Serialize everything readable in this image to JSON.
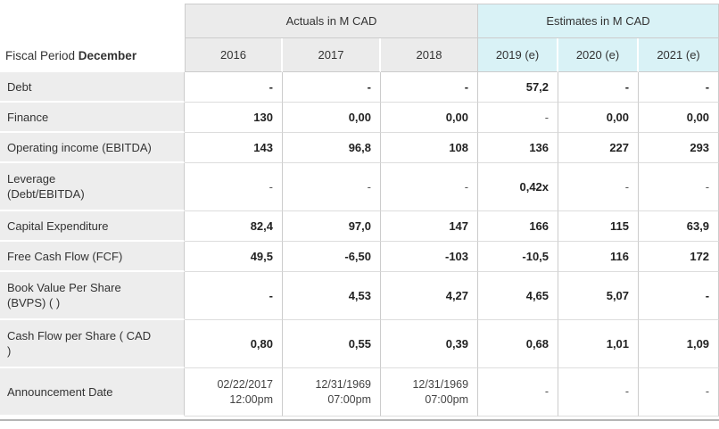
{
  "table": {
    "fiscal_period_label": "Fiscal Period ",
    "fiscal_period_value": "December",
    "group_headers": [
      {
        "label": "Actuals in M CAD"
      },
      {
        "label": "Estimates in M CAD"
      }
    ],
    "year_headers": [
      {
        "label": "2016",
        "type": "actuals"
      },
      {
        "label": "2017",
        "type": "actuals"
      },
      {
        "label": "2018",
        "type": "actuals"
      },
      {
        "label": "2019 (e)",
        "type": "estimates"
      },
      {
        "label": "2020 (e)",
        "type": "estimates"
      },
      {
        "label": "2021 (e)",
        "type": "estimates"
      }
    ],
    "rows": [
      {
        "id": "debt",
        "label": "Debt",
        "values": [
          "-",
          "-",
          "-",
          "57,2",
          "-",
          "-"
        ],
        "bold_dashes": true
      },
      {
        "id": "finance",
        "label": "Finance",
        "values": [
          "130",
          "0,00",
          "0,00",
          "-",
          "0,00",
          "0,00"
        ]
      },
      {
        "id": "operating-income-ebitda",
        "label": "Operating income (EBITDA)",
        "values": [
          "143",
          "96,8",
          "108",
          "136",
          "227",
          "293"
        ]
      },
      {
        "id": "leverage-debt-ebitda",
        "label": "Leverage\n(Debt/EBITDA)",
        "values": [
          "-",
          "-",
          "-",
          "0,42x",
          "-",
          "-"
        ]
      },
      {
        "id": "capital-expenditure",
        "label": "Capital Expenditure",
        "values": [
          "82,4",
          "97,0",
          "147",
          "166",
          "115",
          "63,9"
        ]
      },
      {
        "id": "free-cash-flow-fcf",
        "label": "Free Cash Flow (FCF)",
        "values": [
          "49,5",
          "-6,50",
          "-103",
          "-10,5",
          "116",
          "172"
        ]
      },
      {
        "id": "book-value-per-share-bvps",
        "label": "Book Value Per Share\n(BVPS) ( )",
        "values": [
          "-",
          "4,53",
          "4,27",
          "4,65",
          "5,07",
          "-"
        ],
        "bold_dashes": true
      },
      {
        "id": "cash-flow-per-share",
        "label": "Cash Flow per Share ( CAD\n)",
        "values": [
          "0,80",
          "0,55",
          "0,39",
          "0,68",
          "1,01",
          "1,09"
        ]
      },
      {
        "id": "announcement-date",
        "label": "Announcement Date",
        "values": [
          "02/22/2017\n12:00pm",
          "12/31/1969\n07:00pm",
          "12/31/1969\n07:00pm",
          "-",
          "-",
          "-"
        ],
        "muted": true
      }
    ]
  },
  "colors": {
    "actuals_header_bg": "#ebebeb",
    "estimates_header_bg": "#d9f2f6",
    "label_bg": "#ededed",
    "border": "#cccccc",
    "text": "#333333",
    "value_text": "#222222",
    "rule": "#b5b5b5"
  }
}
